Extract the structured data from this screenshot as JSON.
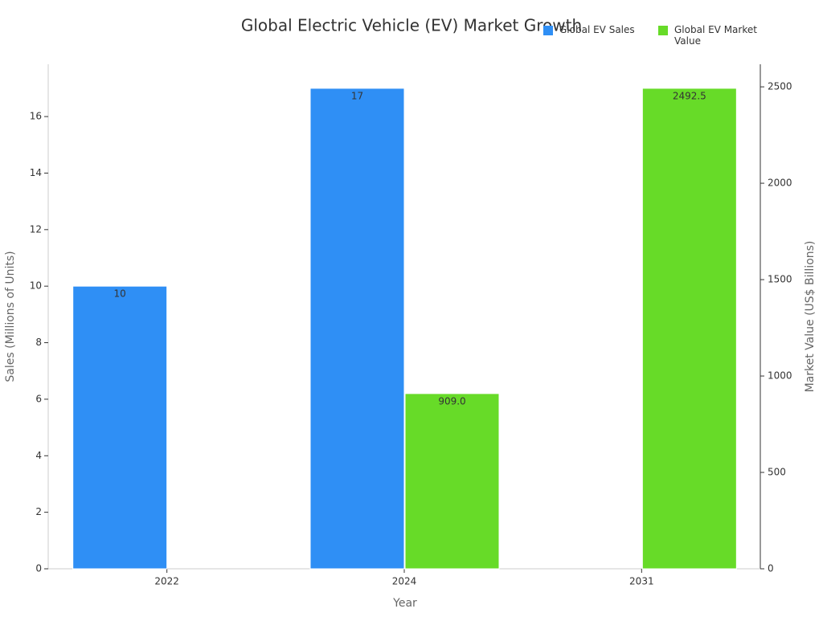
{
  "chart_data": {
    "type": "bar",
    "title": "Global Electric Vehicle (EV) Market Growth",
    "x_label": "Year",
    "y_label": "Sales (Millions of Units)",
    "y2_label": "Market Value (US$ Billions)",
    "categories": [
      "2022",
      "2024",
      "2031"
    ],
    "series": [
      {
        "name": "Global EV Sales",
        "color": "#2f8ff5",
        "values": [
          10,
          17,
          null
        ]
      },
      {
        "name": "Global EV Market Value",
        "color": "#67db28",
        "axis": "y2",
        "values": [
          null,
          909.0,
          2492.5
        ],
        "value_labels": [
          null,
          "909.0",
          "2492.5"
        ]
      }
    ],
    "ylim": [
      0,
      17.85
    ],
    "yticks": [
      0,
      2,
      4,
      6,
      8,
      10,
      12,
      14,
      16
    ],
    "y2lim": [
      0,
      2617.1
    ],
    "y2ticks": [
      0,
      500,
      1000,
      1500,
      2000,
      2500
    ],
    "legend": "top-right",
    "grid": false
  }
}
